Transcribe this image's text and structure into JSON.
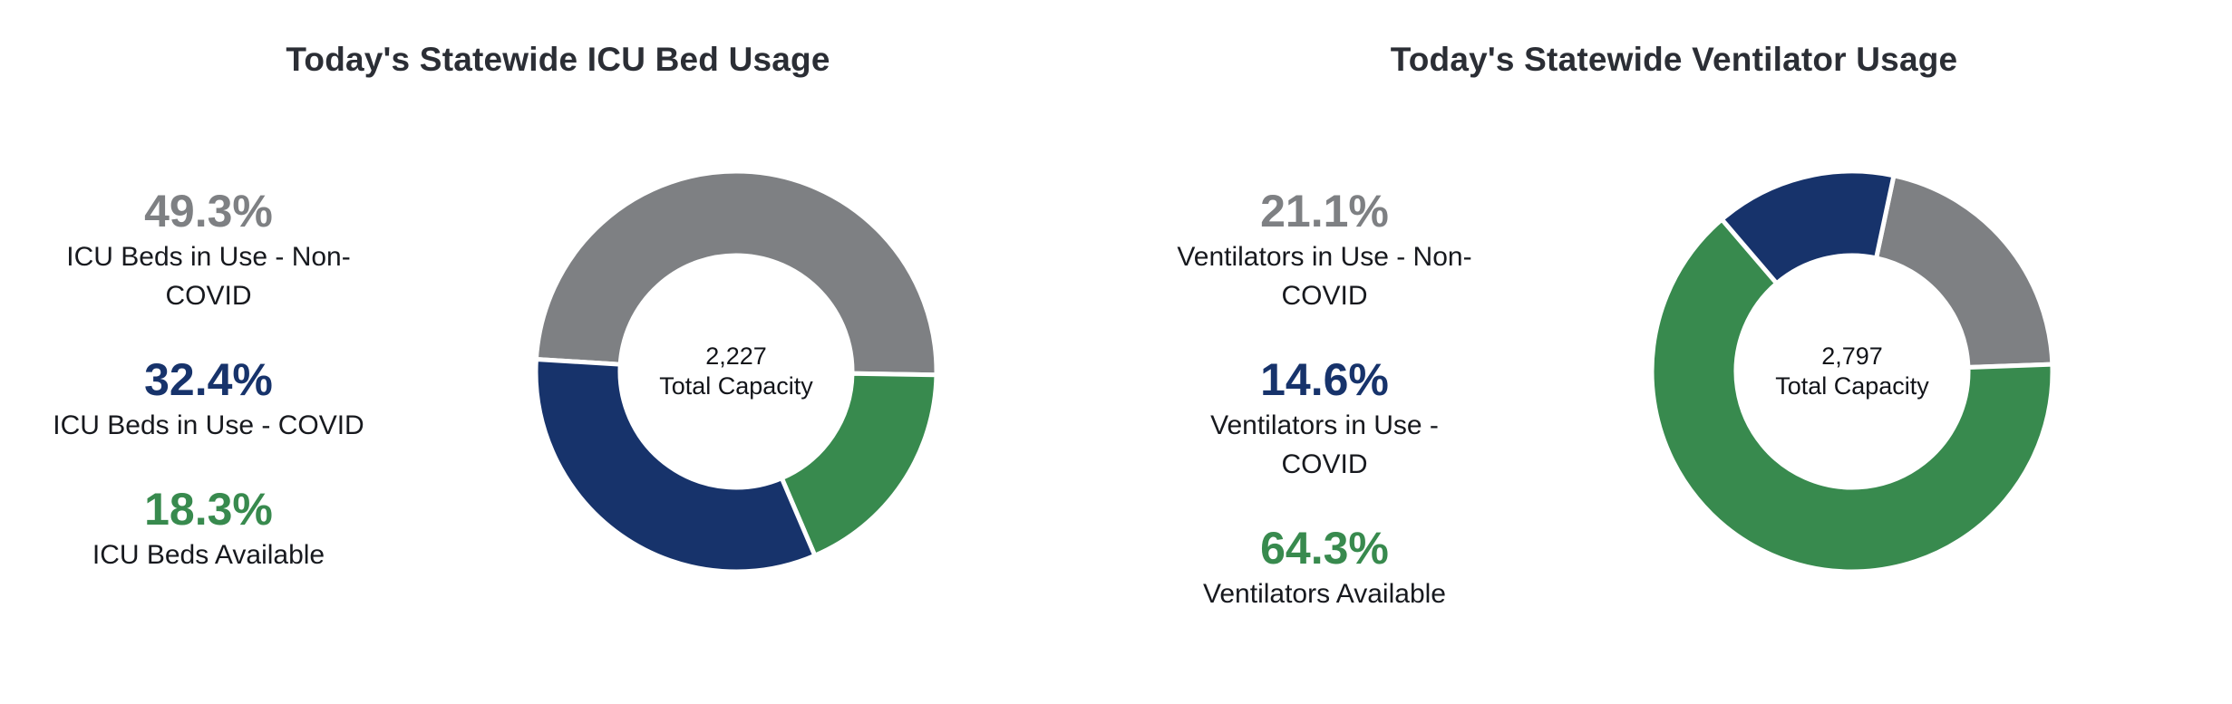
{
  "colors": {
    "gray": "#7e8083",
    "navy": "#17336b",
    "green": "#388a4e",
    "title": "#2b2e35",
    "label_text": "#17191e",
    "background": "#ffffff",
    "slice_border": "#ffffff"
  },
  "panels": [
    {
      "title": "Today's Statewide ICU Bed Usage",
      "stats": [
        {
          "value": "49.3%",
          "label": "ICU Beds in Use - Non-\nCOVID",
          "color": "#7e8083"
        },
        {
          "value": "32.4%",
          "label": "ICU Beds in Use - COVID",
          "color": "#17336b"
        },
        {
          "value": "18.3%",
          "label": "ICU Beds Available",
          "color": "#388a4e"
        }
      ],
      "center_value": "2,227",
      "center_label": "Total Capacity"
    },
    {
      "title": "Today's Statewide Ventilator Usage",
      "stats": [
        {
          "value": "21.1%",
          "label": "Ventilators in Use - Non-\nCOVID",
          "color": "#7e8083"
        },
        {
          "value": "14.6%",
          "label": "Ventilators in Use -\nCOVID",
          "color": "#17336b"
        },
        {
          "value": "64.3%",
          "label": "Ventilators Available",
          "color": "#388a4e"
        }
      ],
      "center_value": "2,797",
      "center_label": "Total Capacity"
    }
  ],
  "chart_data": [
    {
      "type": "pie",
      "subtype": "donut",
      "title": "Today's Statewide ICU Bed Usage",
      "center_label": [
        "2,227",
        "Total Capacity"
      ],
      "total_capacity": 2227,
      "start_angle_deg": 273.5,
      "inner_radius_ratio": 0.58,
      "legend_position": "left",
      "slices_clockwise": [
        {
          "name": "ICU Beds in Use - Non-COVID",
          "pct": 49.3,
          "color": "#7e8083"
        },
        {
          "name": "ICU Beds Available",
          "pct": 18.3,
          "color": "#388a4e"
        },
        {
          "name": "ICU Beds in Use - COVID",
          "pct": 32.4,
          "color": "#17336b"
        }
      ]
    },
    {
      "type": "pie",
      "subtype": "donut",
      "title": "Today's Statewide Ventilator Usage",
      "center_label": [
        "2,797",
        "Total Capacity"
      ],
      "total_capacity": 2797,
      "start_angle_deg": 12,
      "inner_radius_ratio": 0.58,
      "legend_position": "left",
      "slices_clockwise": [
        {
          "name": "Ventilators in Use - Non-COVID",
          "pct": 21.1,
          "color": "#7e8083"
        },
        {
          "name": "Ventilators Available",
          "pct": 64.3,
          "color": "#388a4e"
        },
        {
          "name": "Ventilators in Use - COVID",
          "pct": 14.6,
          "color": "#17336b"
        }
      ]
    }
  ]
}
